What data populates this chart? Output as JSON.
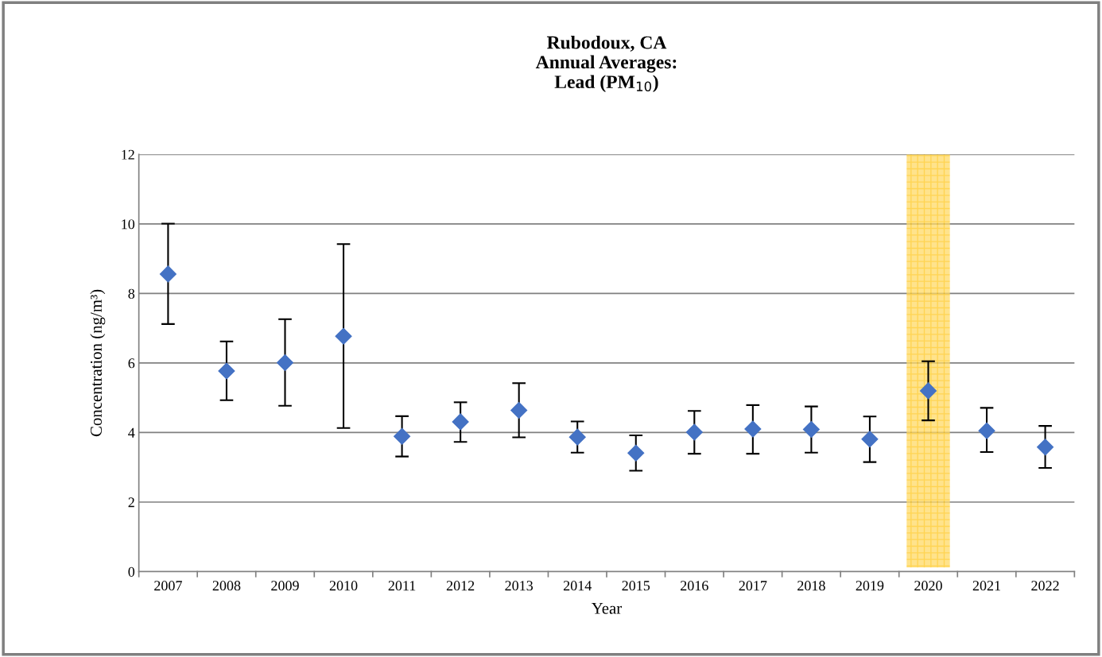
{
  "chart_data": {
    "type": "scatter",
    "title": "Rubodoux, CA\nAnnual Averages:\nLead (PM$_{10}$)",
    "xlabel": "Year",
    "ylabel": "Concentration (ng/m³)",
    "categories": [
      "2007",
      "2008",
      "2009",
      "2010",
      "2011",
      "2012",
      "2013",
      "2014",
      "2015",
      "2016",
      "2017",
      "2018",
      "2019",
      "2020",
      "2021",
      "2022"
    ],
    "values": [
      8.56,
      5.77,
      6.01,
      6.77,
      3.89,
      4.31,
      4.64,
      3.87,
      3.41,
      4.01,
      4.1,
      4.09,
      3.81,
      5.2,
      4.05,
      3.58
    ],
    "errors": [
      [
        7.12,
        10.01
      ],
      [
        4.93,
        6.62
      ],
      [
        4.77,
        7.26
      ],
      [
        4.13,
        9.42
      ],
      [
        3.31,
        4.47
      ],
      [
        3.73,
        4.87
      ],
      [
        3.86,
        5.42
      ],
      [
        3.42,
        4.32
      ],
      [
        2.9,
        3.92
      ],
      [
        3.39,
        4.62
      ],
      [
        3.39,
        4.79
      ],
      [
        3.42,
        4.75
      ],
      [
        3.15,
        4.46
      ],
      [
        4.35,
        6.05
      ],
      [
        3.44,
        4.71
      ],
      [
        2.98,
        4.19
      ]
    ],
    "color": "#4472c4",
    "marker": "diamond",
    "ylim": [
      0,
      12
    ],
    "yticks": [
      0,
      2,
      4,
      6,
      8,
      10,
      12
    ],
    "grid": "y",
    "bands": [
      {
        "axis": "x",
        "from": "2020",
        "to": "2020",
        "color": "#ffd966"
      }
    ]
  }
}
